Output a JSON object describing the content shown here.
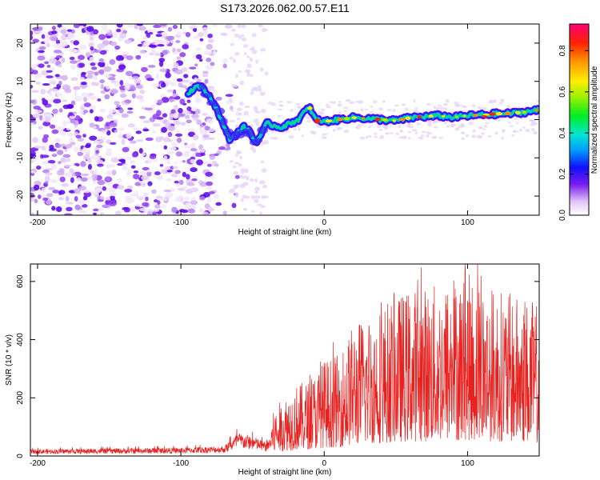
{
  "title": "S173.2026.062.00.57.E11",
  "chart_data": [
    {
      "type": "heatmap",
      "xlabel": "Height of straight line (km)",
      "ylabel": "Frequency (Hz)",
      "xlim": [
        -205,
        150
      ],
      "ylim": [
        -25,
        25
      ],
      "xticks": [
        -200,
        -100,
        0,
        100
      ],
      "yticks": [
        -20,
        -10,
        0,
        10,
        20
      ],
      "colorbar": {
        "label": "Normalized spectral amplitude",
        "range": [
          0,
          0.93
        ],
        "ticks": [
          0.0,
          0.2,
          0.4,
          0.6,
          0.8
        ],
        "tick_labels": [
          "0.0",
          "0.2",
          "0.4",
          "0.6",
          "0.8"
        ]
      },
      "ridge": {
        "x": [
          -95,
          -88,
          -82,
          -78,
          -74,
          -70,
          -66,
          -62,
          -56,
          -52,
          -48,
          -44,
          -40,
          -36,
          -30,
          -24,
          -18,
          -14,
          -10,
          -6,
          0,
          10,
          20,
          30,
          40,
          50,
          60,
          70,
          80,
          90,
          100,
          110,
          120,
          130,
          140,
          150
        ],
        "y": [
          7,
          9,
          7,
          5,
          2,
          -2,
          -5,
          -4,
          -2,
          -3,
          -6,
          -4,
          -1,
          -1.5,
          -2,
          -1,
          0,
          2,
          3,
          0,
          -0.5,
          0,
          0.5,
          0.3,
          0,
          -0.3,
          0.5,
          0.8,
          1.0,
          0.6,
          1.0,
          1.2,
          1.5,
          1.6,
          2.0,
          2.5
        ]
      }
    },
    {
      "type": "line",
      "xlabel": "Height of straight line (km)",
      "ylabel": "SNR (10 * v/v)",
      "xlim": [
        -205,
        150
      ],
      "ylim": [
        0,
        660
      ],
      "xticks": [
        -200,
        -100,
        0,
        100
      ],
      "yticks": [
        0,
        200,
        400,
        600
      ],
      "color": "#e8201e",
      "envelope": {
        "x": [
          -205,
          -100,
          -70,
          -60,
          -50,
          -40,
          -35,
          -30,
          -20,
          -10,
          0,
          10,
          20,
          40,
          60,
          80,
          100,
          120,
          150
        ],
        "y": [
          20,
          25,
          30,
          70,
          60,
          40,
          90,
          110,
          140,
          150,
          190,
          200,
          260,
          300,
          330,
          340,
          360,
          330,
          300
        ]
      }
    }
  ]
}
